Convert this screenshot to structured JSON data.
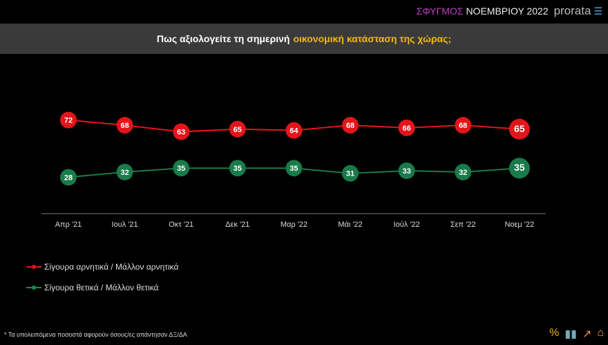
{
  "brand": {
    "survey": "ΣΦΥΓΜΟΣ",
    "month": "ΝΟΕΜΒΡΙΟΥ 2022",
    "logo": "prorata"
  },
  "chart_data": {
    "type": "line",
    "title_part1": "Πως αξιολογείτε τη σημερινή",
    "title_part2": "οικονομική κατάσταση της χώρας;",
    "categories": [
      "Απρ '21",
      "Ιουλ '21",
      "Οκτ '21",
      "Δεκ '21",
      "Μαρ '22",
      "Μάι '22",
      "Ιούλ '22",
      "Σεπ '22",
      "Νοεμ '22"
    ],
    "series": [
      {
        "name": "Σίγουρα αρνητικά / Μάλλον αρνητικά",
        "color": "#e3151a",
        "values": [
          72,
          68,
          63,
          65,
          64,
          68,
          66,
          68,
          65
        ]
      },
      {
        "name": "Σίγουρα θετικά / Μάλλον θετικά",
        "color": "#1a7a4a",
        "values": [
          28,
          32,
          35,
          35,
          35,
          31,
          33,
          32,
          35
        ]
      }
    ],
    "ylim": [
      0,
      100
    ]
  },
  "footnote": "* Τα υπολειπόμενα ποσοστά αφορούν όσους/ες απάντησαν ΔΞ/ΔΑ",
  "icons": [
    "percent-icon",
    "bar-chart-icon",
    "growth-chart-icon",
    "house-chart-icon"
  ]
}
